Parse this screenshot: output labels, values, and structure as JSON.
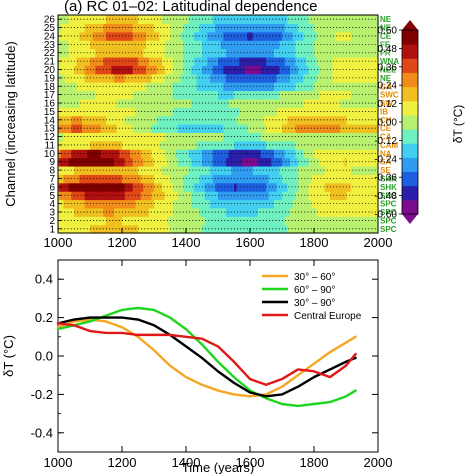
{
  "chart_data": [
    {
      "type": "heatmap",
      "title": "(a) RC 01–02: Latitudinal dependence",
      "xlabel": "",
      "ylabel": "Channel (increasing latitude)",
      "xlim": [
        1000,
        2000
      ],
      "ylim": [
        1,
        26
      ],
      "x_ticks": [
        "1000",
        "1200",
        "1400",
        "1600",
        "1800",
        "2000"
      ],
      "channels": [
        1,
        2,
        3,
        4,
        5,
        6,
        7,
        8,
        9,
        10,
        11,
        12,
        13,
        14,
        15,
        16,
        17,
        18,
        19,
        20,
        21,
        22,
        23,
        24,
        25,
        26
      ],
      "y_ticks": [
        "1",
        "2",
        "3",
        "4",
        "5",
        "6",
        "7",
        "8",
        "9",
        "10",
        "11",
        "12",
        "13",
        "14",
        "15",
        "16",
        "17",
        "18",
        "19",
        "20",
        "21",
        "22",
        "23",
        "24",
        "25",
        "26"
      ],
      "right_labels": [
        "SPC",
        "SPC",
        "SPC",
        "SPC",
        "SPC",
        "SHK",
        "SHK",
        "SE",
        "SA",
        "NA",
        "CAM",
        "CA",
        "CE",
        "CH",
        "IB",
        "SW",
        "SWC",
        "GA",
        "NE",
        "NEE",
        "WNA",
        "FR",
        "FE",
        "CE",
        "NE",
        "NE"
      ],
      "right_label_colors": [
        "#2ca02c",
        "#2ca02c",
        "#2ca02c",
        "#2ca02c",
        "#2ca02c",
        "#2ca02c",
        "#2ca02c",
        "#e68a00",
        "#e68a00",
        "#e68a00",
        "#e68a00",
        "#e68a00",
        "#e68a00",
        "#e68a00",
        "#e68a00",
        "#e68a00",
        "#e68a00",
        "#e68a00",
        "#2ca02c",
        "#2ca02c",
        "#2ca02c",
        "#2ca02c",
        "#2ca02c",
        "#2ca02c",
        "#2ca02c",
        "#2ca02c"
      ],
      "times": [
        1000,
        1050,
        1100,
        1150,
        1200,
        1250,
        1300,
        1350,
        1400,
        1450,
        1500,
        1550,
        1600,
        1650,
        1700,
        1750,
        1800,
        1850,
        1900,
        1930
      ],
      "values": [
        [
          0.08,
          0.1,
          0.14,
          0.16,
          0.16,
          0.14,
          0.1,
          0.05,
          0.0,
          -0.05,
          -0.1,
          -0.12,
          -0.12,
          -0.1,
          -0.06,
          -0.02,
          0.02,
          0.04,
          0.04,
          0.03
        ],
        [
          0.06,
          0.08,
          0.12,
          0.14,
          0.14,
          0.12,
          0.08,
          0.04,
          0.0,
          -0.04,
          -0.08,
          -0.1,
          -0.1,
          -0.08,
          -0.05,
          -0.02,
          0.02,
          0.04,
          0.04,
          0.03
        ],
        [
          0.1,
          0.14,
          0.2,
          0.24,
          0.22,
          0.18,
          0.12,
          0.06,
          0.0,
          -0.06,
          -0.12,
          -0.16,
          -0.16,
          -0.12,
          -0.08,
          -0.02,
          0.04,
          0.08,
          0.08,
          0.06
        ],
        [
          0.12,
          0.18,
          0.26,
          0.3,
          0.28,
          0.22,
          0.14,
          0.06,
          -0.02,
          -0.1,
          -0.18,
          -0.22,
          -0.22,
          -0.18,
          -0.1,
          -0.02,
          0.06,
          0.1,
          0.1,
          0.08
        ],
        [
          0.22,
          0.34,
          0.46,
          0.5,
          0.44,
          0.34,
          0.22,
          0.1,
          0.0,
          -0.12,
          -0.24,
          -0.3,
          -0.3,
          -0.24,
          -0.14,
          -0.02,
          0.08,
          0.14,
          0.14,
          0.1
        ],
        [
          0.4,
          0.56,
          0.64,
          0.62,
          0.52,
          0.38,
          0.22,
          0.08,
          -0.06,
          -0.2,
          -0.34,
          -0.42,
          -0.4,
          -0.32,
          -0.18,
          -0.04,
          0.08,
          0.16,
          0.16,
          0.12
        ],
        [
          0.2,
          0.3,
          0.38,
          0.38,
          0.32,
          0.24,
          0.14,
          0.04,
          -0.06,
          -0.16,
          -0.26,
          -0.32,
          -0.3,
          -0.24,
          -0.14,
          -0.04,
          0.06,
          0.12,
          0.12,
          0.08
        ],
        [
          0.08,
          0.14,
          0.2,
          0.22,
          0.2,
          0.14,
          0.08,
          0.02,
          -0.04,
          -0.1,
          -0.18,
          -0.24,
          -0.24,
          -0.2,
          -0.12,
          -0.04,
          0.02,
          0.06,
          0.06,
          0.04
        ],
        [
          0.4,
          0.56,
          0.62,
          0.58,
          0.44,
          0.28,
          0.14,
          0.02,
          -0.1,
          -0.22,
          -0.36,
          -0.48,
          -0.54,
          -0.48,
          -0.32,
          -0.14,
          0.02,
          0.12,
          0.14,
          0.1
        ],
        [
          0.3,
          0.44,
          0.52,
          0.5,
          0.4,
          0.26,
          0.12,
          0.0,
          -0.12,
          -0.24,
          -0.36,
          -0.44,
          -0.46,
          -0.4,
          -0.26,
          -0.1,
          0.04,
          0.12,
          0.12,
          0.08
        ],
        [
          0.06,
          0.1,
          0.14,
          0.16,
          0.14,
          0.1,
          0.06,
          0.02,
          -0.02,
          -0.06,
          -0.1,
          -0.14,
          -0.16,
          -0.14,
          -0.1,
          -0.04,
          0.0,
          0.04,
          0.04,
          0.02
        ],
        [
          0.04,
          0.06,
          0.08,
          0.1,
          0.1,
          0.08,
          0.06,
          0.04,
          0.0,
          -0.02,
          -0.04,
          -0.06,
          -0.06,
          -0.04,
          -0.02,
          0.0,
          0.02,
          0.04,
          0.04,
          0.02
        ],
        [
          0.26,
          0.34,
          0.3,
          0.2,
          0.1,
          0.02,
          -0.06,
          -0.12,
          -0.16,
          -0.18,
          -0.16,
          -0.1,
          -0.04,
          0.04,
          0.14,
          0.24,
          0.3,
          0.28,
          0.2,
          0.14
        ],
        [
          0.18,
          0.24,
          0.22,
          0.14,
          0.06,
          0.0,
          -0.04,
          -0.08,
          -0.12,
          -0.14,
          -0.12,
          -0.06,
          0.0,
          0.06,
          0.12,
          0.18,
          0.22,
          0.2,
          0.14,
          0.1
        ],
        [
          0.06,
          0.08,
          0.1,
          0.1,
          0.08,
          0.04,
          0.0,
          -0.04,
          -0.08,
          -0.1,
          -0.1,
          -0.06,
          -0.02,
          0.02,
          0.06,
          0.08,
          0.1,
          0.1,
          0.08,
          0.06
        ],
        [
          0.02,
          0.04,
          0.06,
          0.06,
          0.04,
          0.02,
          0.0,
          -0.02,
          -0.04,
          -0.06,
          -0.06,
          -0.04,
          -0.02,
          0.0,
          0.02,
          0.04,
          0.06,
          0.06,
          0.04,
          0.04
        ],
        [
          0.0,
          0.02,
          0.04,
          0.06,
          0.06,
          0.04,
          0.0,
          -0.04,
          -0.08,
          -0.12,
          -0.14,
          -0.14,
          -0.12,
          -0.08,
          -0.04,
          0.0,
          0.04,
          0.06,
          0.06,
          0.04
        ],
        [
          0.0,
          0.04,
          0.08,
          0.1,
          0.1,
          0.08,
          0.02,
          -0.04,
          -0.1,
          -0.16,
          -0.22,
          -0.26,
          -0.28,
          -0.26,
          -0.2,
          -0.12,
          -0.04,
          0.02,
          0.04,
          0.02
        ],
        [
          0.02,
          0.08,
          0.16,
          0.22,
          0.24,
          0.2,
          0.12,
          0.02,
          -0.08,
          -0.18,
          -0.28,
          -0.36,
          -0.4,
          -0.38,
          -0.3,
          -0.18,
          -0.06,
          0.04,
          0.08,
          0.06
        ],
        [
          0.04,
          0.14,
          0.28,
          0.4,
          0.46,
          0.4,
          0.26,
          0.08,
          -0.08,
          -0.24,
          -0.38,
          -0.48,
          -0.52,
          -0.5,
          -0.4,
          -0.24,
          -0.08,
          0.04,
          0.08,
          0.06
        ],
        [
          0.04,
          0.12,
          0.24,
          0.34,
          0.38,
          0.32,
          0.2,
          0.06,
          -0.08,
          -0.2,
          -0.32,
          -0.4,
          -0.44,
          -0.42,
          -0.34,
          -0.2,
          -0.06,
          0.04,
          0.08,
          0.06
        ],
        [
          0.02,
          0.06,
          0.12,
          0.18,
          0.2,
          0.16,
          0.1,
          0.02,
          -0.06,
          -0.14,
          -0.2,
          -0.26,
          -0.28,
          -0.26,
          -0.2,
          -0.12,
          -0.04,
          0.02,
          0.04,
          0.04
        ],
        [
          0.02,
          0.06,
          0.14,
          0.2,
          0.22,
          0.18,
          0.1,
          0.02,
          -0.06,
          -0.14,
          -0.22,
          -0.28,
          -0.3,
          -0.28,
          -0.22,
          -0.12,
          -0.04,
          0.02,
          0.04,
          0.04
        ],
        [
          0.04,
          0.1,
          0.22,
          0.32,
          0.36,
          0.3,
          0.18,
          0.04,
          -0.08,
          -0.2,
          -0.3,
          -0.38,
          -0.42,
          -0.4,
          -0.32,
          -0.18,
          -0.06,
          0.04,
          0.06,
          0.04
        ],
        [
          0.04,
          0.08,
          0.16,
          0.24,
          0.26,
          0.22,
          0.14,
          0.04,
          -0.06,
          -0.16,
          -0.24,
          -0.3,
          -0.32,
          -0.3,
          -0.24,
          -0.14,
          -0.04,
          0.02,
          0.04,
          0.04
        ],
        [
          0.02,
          0.06,
          0.1,
          0.14,
          0.16,
          0.14,
          0.08,
          0.02,
          -0.04,
          -0.1,
          -0.16,
          -0.2,
          -0.22,
          -0.2,
          -0.16,
          -0.1,
          -0.02,
          0.02,
          0.04,
          0.02
        ]
      ],
      "colorbar": {
        "label": "δT (°C)",
        "ticks": [
          "0.60",
          "0.48",
          "0.36",
          "0.24",
          "0.12",
          "0.00",
          "-0.12",
          "-0.24",
          "-0.36",
          "-0.48",
          "-0.60"
        ],
        "range": [
          -0.6,
          0.6
        ],
        "colors": [
          "#7d0b8d",
          "#2b1ea8",
          "#1e5fe0",
          "#2f9cf0",
          "#43d0f0",
          "#6ff0c0",
          "#b8f070",
          "#f0f040",
          "#f0c020",
          "#f08c1a",
          "#e04818",
          "#b01010",
          "#800000"
        ]
      }
    },
    {
      "type": "line",
      "xlabel": "Time (years)",
      "ylabel": "δT (°C)",
      "xlim": [
        1000,
        2000
      ],
      "ylim": [
        -0.5,
        0.5
      ],
      "x_ticks": [
        "1000",
        "1200",
        "1400",
        "1600",
        "1800",
        "2000"
      ],
      "y_ticks": [
        "0.4",
        "0.2",
        "0.0",
        "-0.2",
        "-0.4"
      ],
      "legend_position": "top-right",
      "series": [
        {
          "name": "30° – 60°",
          "color": "#f5a623",
          "x": [
            1000,
            1050,
            1100,
            1150,
            1200,
            1250,
            1300,
            1350,
            1400,
            1450,
            1500,
            1550,
            1600,
            1650,
            1700,
            1750,
            1800,
            1850,
            1900,
            1930
          ],
          "y": [
            0.15,
            0.18,
            0.19,
            0.18,
            0.15,
            0.1,
            0.03,
            -0.05,
            -0.11,
            -0.15,
            -0.18,
            -0.2,
            -0.21,
            -0.2,
            -0.16,
            -0.1,
            -0.04,
            0.02,
            0.07,
            0.1
          ]
        },
        {
          "name": "60° – 90°",
          "color": "#1fd61f",
          "x": [
            1000,
            1050,
            1100,
            1150,
            1200,
            1250,
            1300,
            1350,
            1400,
            1450,
            1500,
            1550,
            1600,
            1650,
            1700,
            1750,
            1800,
            1850,
            1900,
            1930
          ],
          "y": [
            0.14,
            0.16,
            0.18,
            0.21,
            0.24,
            0.25,
            0.24,
            0.2,
            0.14,
            0.06,
            -0.03,
            -0.11,
            -0.18,
            -0.22,
            -0.25,
            -0.26,
            -0.25,
            -0.24,
            -0.21,
            -0.18
          ]
        },
        {
          "name": "30° – 90°",
          "color": "#000000",
          "x": [
            1000,
            1050,
            1100,
            1150,
            1200,
            1250,
            1300,
            1350,
            1400,
            1450,
            1500,
            1550,
            1600,
            1650,
            1700,
            1750,
            1800,
            1850,
            1900,
            1930
          ],
          "y": [
            0.17,
            0.19,
            0.2,
            0.2,
            0.2,
            0.19,
            0.16,
            0.11,
            0.05,
            -0.01,
            -0.08,
            -0.14,
            -0.19,
            -0.21,
            -0.2,
            -0.16,
            -0.11,
            -0.07,
            -0.03,
            -0.01
          ]
        },
        {
          "name": "Central Europe",
          "color": "#e01818",
          "x": [
            1000,
            1050,
            1100,
            1150,
            1200,
            1250,
            1300,
            1350,
            1400,
            1450,
            1500,
            1550,
            1600,
            1650,
            1700,
            1750,
            1800,
            1850,
            1900,
            1930
          ],
          "y": [
            0.17,
            0.16,
            0.13,
            0.12,
            0.12,
            0.11,
            0.11,
            0.11,
            0.1,
            0.09,
            0.05,
            -0.03,
            -0.12,
            -0.15,
            -0.12,
            -0.07,
            -0.08,
            -0.11,
            -0.05,
            0.01
          ]
        }
      ]
    }
  ]
}
